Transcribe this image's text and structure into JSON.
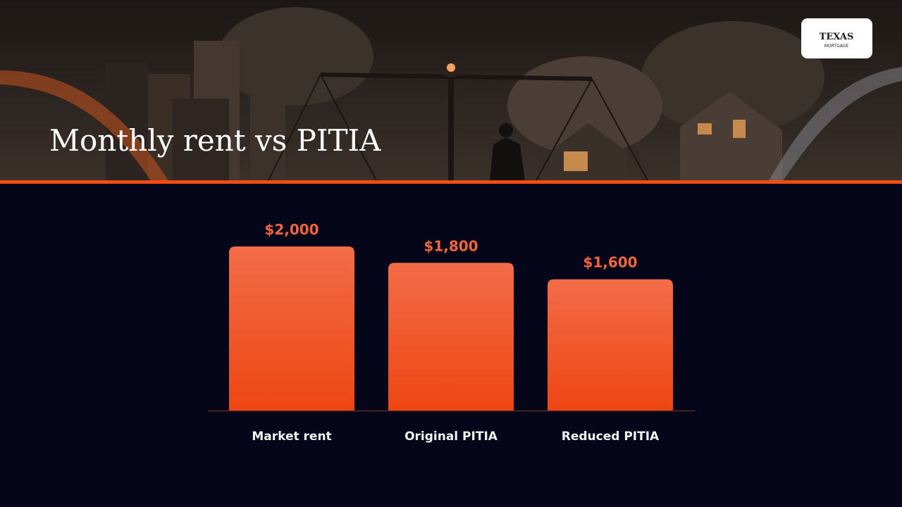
{
  "chart_data": {
    "type": "bar",
    "title": "Monthly rent vs PITIA",
    "categories": [
      "Market rent",
      "Original PITIA",
      "Reduced PITIA"
    ],
    "values": [
      2000,
      1800,
      1600
    ],
    "value_labels": [
      "$2,000",
      "$1,800",
      "$1,600"
    ],
    "color": "#f0501f"
  },
  "logo": {
    "name": "TEXAS",
    "tagline": "MORTGAGE"
  }
}
